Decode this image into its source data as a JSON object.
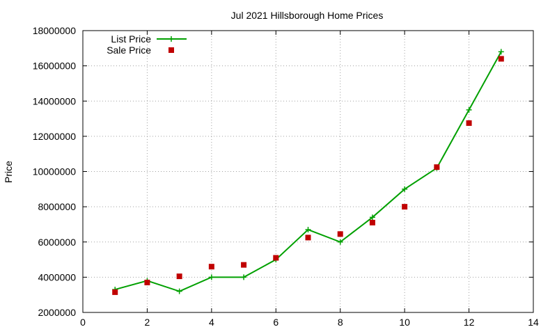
{
  "chart_data": {
    "type": "line",
    "title": "Jul 2021 Hillsborough Home Prices",
    "xlabel": "",
    "ylabel": "Price",
    "xlim": [
      0,
      14
    ],
    "ylim": [
      2000000,
      18000000
    ],
    "x_ticks": [
      0,
      2,
      4,
      6,
      8,
      10,
      12,
      14
    ],
    "y_ticks": [
      2000000,
      4000000,
      6000000,
      8000000,
      10000000,
      12000000,
      14000000,
      16000000,
      18000000
    ],
    "x_tick_labels": [
      "0",
      "2",
      "4",
      "6",
      "8",
      "10",
      "12",
      "14"
    ],
    "y_tick_labels": [
      "2000000",
      "4000000",
      "6000000",
      "8000000",
      "10000000",
      "12000000",
      "14000000",
      "16000000",
      "18000000"
    ],
    "grid": true,
    "legend_position": "top-left",
    "series": [
      {
        "name": "List Price",
        "style": "line+cross",
        "color": "#00a000",
        "x": [
          1,
          2,
          3,
          4,
          5,
          6,
          7,
          8,
          9,
          10,
          11,
          12,
          13
        ],
        "y": [
          3300000,
          3800000,
          3200000,
          4000000,
          4000000,
          5000000,
          6700000,
          6000000,
          7400000,
          9000000,
          10200000,
          13500000,
          16800000
        ]
      },
      {
        "name": "Sale Price",
        "style": "square-points",
        "color": "#c00000",
        "x": [
          1,
          2,
          3,
          4,
          5,
          6,
          7,
          8,
          9,
          10,
          11,
          12,
          13
        ],
        "y": [
          3150000,
          3700000,
          4050000,
          4600000,
          4700000,
          5100000,
          6250000,
          6450000,
          7100000,
          8000000,
          10250000,
          12750000,
          16400000
        ]
      }
    ]
  }
}
